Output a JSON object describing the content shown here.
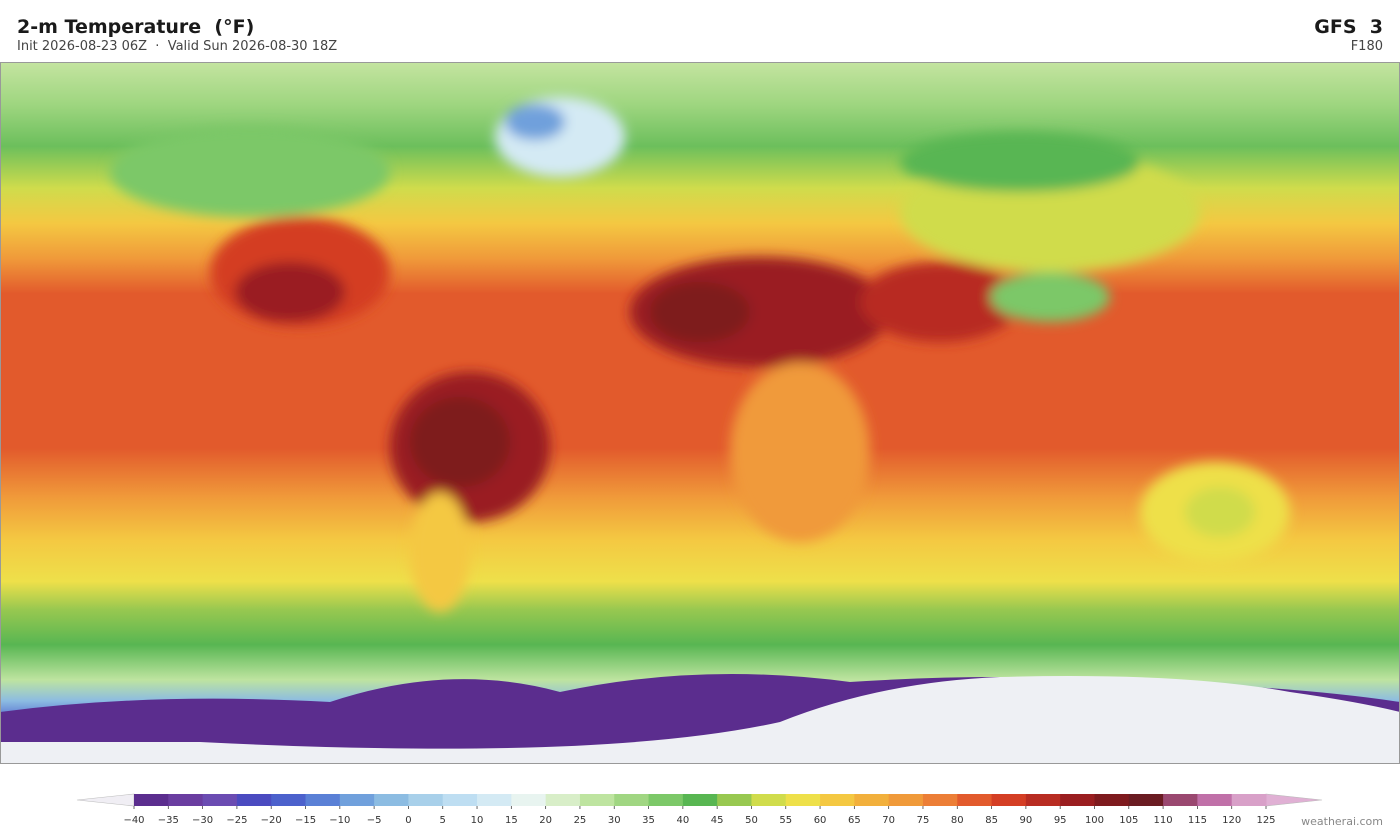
{
  "header": {
    "title": "2-m Temperature  (°F)",
    "subtitle": "Init 2026-08-23 06Z  ·  Valid Sun 2026-08-30 18Z",
    "model": "GFS  3",
    "forecast_hour": "F180"
  },
  "colorbar": {
    "ticks": [
      {
        "value": -40,
        "label": "−40"
      },
      {
        "value": -35,
        "label": "−35"
      },
      {
        "value": -30,
        "label": "−30"
      },
      {
        "value": -25,
        "label": "−25"
      },
      {
        "value": -20,
        "label": "−20"
      },
      {
        "value": -15,
        "label": "−15"
      },
      {
        "value": -10,
        "label": "−10"
      },
      {
        "value": -5,
        "label": "−5"
      },
      0,
      5,
      10,
      15,
      20,
      25,
      30,
      35,
      40,
      45,
      50,
      55,
      60,
      65,
      70,
      75,
      80,
      85,
      90,
      95,
      100,
      105,
      110,
      115,
      120,
      125
    ],
    "colors": [
      "#5b2d8e",
      "#6a3da0",
      "#6b4cb2",
      "#4b4bc0",
      "#4c61cc",
      "#5a80d6",
      "#70a0dc",
      "#8cbce2",
      "#a8d0ea",
      "#bedef2",
      "#d4eaf4",
      "#e8f4f0",
      "#d8eec8",
      "#bee4a0",
      "#a0d682",
      "#7cc868",
      "#58b652",
      "#98c850",
      "#d0dc4c",
      "#eee04a",
      "#f4c842",
      "#f2b03c",
      "#f09a3a",
      "#ec7e36",
      "#e25a2c",
      "#d43e24",
      "#b82c22",
      "#9a1e20",
      "#7e1a1e",
      "#6a1c22",
      "#9a4870",
      "#c070a8",
      "#d8a0c8"
    ],
    "under_color": "#f0eef4",
    "over_color": "#e0b0d4"
  },
  "footer": {
    "credit": "weatherai.com"
  }
}
